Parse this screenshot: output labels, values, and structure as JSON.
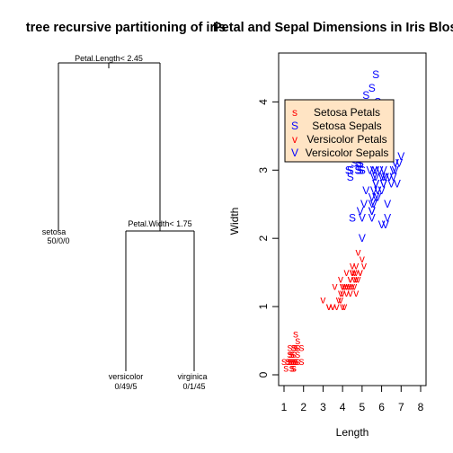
{
  "chart_data": [
    {
      "type": "diagram",
      "title": "tree recursive partitioning of iris",
      "root_split": "Petal.Length< 2.45",
      "inner_split": "Petal.Width< 1.75",
      "leaves": [
        {
          "label": "setosa",
          "counts": "50/0/0"
        },
        {
          "label": "versicolor",
          "counts": "0/49/5"
        },
        {
          "label": "virginica",
          "counts": "0/1/45"
        }
      ]
    },
    {
      "type": "scatter",
      "title": "Petal and Sepal Dimensions in Iris Blossoms",
      "xlabel": "Length",
      "ylabel": "Width",
      "xlim": [
        1,
        8
      ],
      "ylim": [
        0,
        4.5
      ],
      "x_ticks": [
        1,
        2,
        3,
        4,
        5,
        6,
        7,
        8
      ],
      "y_ticks": [
        0,
        1,
        2,
        3,
        4
      ],
      "legend_position": "top-left",
      "legend_fill": "#FFE4C4",
      "series": [
        {
          "name": "Setosa Petals",
          "symbol": "s",
          "color": "#FF0000",
          "x": [
            1.4,
            1.4,
            1.3,
            1.5,
            1.4,
            1.7,
            1.4,
            1.5,
            1.4,
            1.5,
            1.5,
            1.6,
            1.4,
            1.1,
            1.2,
            1.5,
            1.3,
            1.4,
            1.7,
            1.5,
            1.7,
            1.5,
            1.0,
            1.7,
            1.9,
            1.6,
            1.6,
            1.5,
            1.4,
            1.6,
            1.6,
            1.5,
            1.5,
            1.4,
            1.5,
            1.2,
            1.3,
            1.4,
            1.3,
            1.5,
            1.3,
            1.3,
            1.3,
            1.6,
            1.9,
            1.4,
            1.6,
            1.4,
            1.5,
            1.4
          ],
          "y": [
            0.2,
            0.2,
            0.2,
            0.2,
            0.2,
            0.4,
            0.3,
            0.2,
            0.2,
            0.1,
            0.2,
            0.2,
            0.1,
            0.1,
            0.2,
            0.4,
            0.4,
            0.3,
            0.3,
            0.3,
            0.2,
            0.4,
            0.2,
            0.5,
            0.2,
            0.2,
            0.4,
            0.2,
            0.2,
            0.2,
            0.2,
            0.4,
            0.1,
            0.2,
            0.2,
            0.2,
            0.2,
            0.1,
            0.2,
            0.2,
            0.3,
            0.3,
            0.2,
            0.6,
            0.4,
            0.3,
            0.2,
            0.2,
            0.2,
            0.2
          ]
        },
        {
          "name": "Setosa Sepals",
          "symbol": "S",
          "color": "#0000FF",
          "x": [
            5.1,
            4.9,
            4.7,
            4.6,
            5.0,
            5.4,
            4.6,
            5.0,
            4.4,
            4.9,
            5.4,
            4.8,
            4.8,
            4.3,
            5.8,
            5.7,
            5.4,
            5.1,
            5.7,
            5.1,
            5.4,
            5.1,
            4.6,
            5.1,
            4.8,
            5.0,
            5.0,
            5.2,
            5.2,
            4.7,
            4.8,
            5.4,
            5.2,
            5.5,
            4.9,
            5.0,
            5.5,
            4.9,
            4.4,
            5.1,
            5.0,
            4.5,
            4.4,
            5.0,
            5.1,
            4.8,
            5.1,
            4.6,
            5.3,
            5.0
          ],
          "y": [
            3.5,
            3.0,
            3.2,
            3.1,
            3.6,
            3.9,
            3.4,
            3.4,
            2.9,
            3.1,
            3.7,
            3.4,
            3.0,
            3.0,
            4.0,
            4.4,
            3.9,
            3.5,
            3.8,
            3.8,
            3.4,
            3.7,
            3.6,
            3.3,
            3.4,
            3.0,
            3.4,
            3.5,
            3.4,
            3.2,
            3.1,
            3.4,
            4.1,
            4.2,
            3.1,
            3.2,
            3.5,
            3.6,
            3.0,
            3.4,
            3.5,
            2.3,
            3.2,
            3.5,
            3.8,
            3.0,
            3.8,
            3.2,
            3.7,
            3.3
          ]
        },
        {
          "name": "Versicolor Petals",
          "symbol": "v",
          "color": "#FF0000",
          "x": [
            4.7,
            4.5,
            4.9,
            4.0,
            4.6,
            4.5,
            4.7,
            3.3,
            4.6,
            3.9,
            3.5,
            4.2,
            4.0,
            4.7,
            3.6,
            4.4,
            4.5,
            4.1,
            4.5,
            3.9,
            4.8,
            4.0,
            4.9,
            4.7,
            4.3,
            4.4,
            4.8,
            5.0,
            4.5,
            3.5,
            3.8,
            3.7,
            3.9,
            5.1,
            4.5,
            4.5,
            4.7,
            4.4,
            4.1,
            4.0,
            4.4,
            4.6,
            4.0,
            3.3,
            4.2,
            4.2,
            4.2,
            4.3,
            3.0,
            4.1
          ],
          "y": [
            1.4,
            1.5,
            1.5,
            1.3,
            1.5,
            1.3,
            1.6,
            1.0,
            1.3,
            1.4,
            1.0,
            1.5,
            1.0,
            1.4,
            1.3,
            1.4,
            1.5,
            1.0,
            1.5,
            1.1,
            1.8,
            1.3,
            1.5,
            1.2,
            1.3,
            1.4,
            1.4,
            1.7,
            1.5,
            1.0,
            1.1,
            1.0,
            1.2,
            1.6,
            1.5,
            1.6,
            1.5,
            1.3,
            1.3,
            1.3,
            1.2,
            1.4,
            1.2,
            1.0,
            1.3,
            1.2,
            1.3,
            1.3,
            1.1,
            1.3
          ]
        },
        {
          "name": "Versicolor Sepals",
          "symbol": "V",
          "color": "#0000FF",
          "x": [
            7.0,
            6.4,
            6.9,
            5.5,
            6.5,
            5.7,
            6.3,
            4.9,
            6.6,
            5.2,
            5.0,
            5.9,
            6.0,
            6.1,
            5.6,
            6.7,
            5.6,
            5.8,
            6.2,
            5.6,
            5.9,
            6.1,
            6.3,
            6.1,
            6.4,
            6.6,
            6.8,
            6.7,
            6.0,
            5.7,
            5.5,
            5.5,
            5.8,
            6.0,
            5.4,
            6.0,
            6.7,
            6.3,
            5.6,
            5.5,
            5.5,
            6.1,
            5.8,
            5.0,
            5.6,
            5.7,
            5.7,
            6.2,
            5.1,
            5.7
          ],
          "y": [
            3.2,
            3.2,
            3.1,
            2.3,
            2.8,
            2.8,
            3.3,
            2.4,
            2.9,
            2.7,
            2.0,
            3.0,
            2.2,
            2.9,
            2.9,
            3.1,
            3.0,
            2.7,
            2.2,
            2.5,
            3.2,
            2.8,
            2.5,
            2.8,
            2.9,
            3.0,
            2.8,
            3.0,
            2.9,
            2.6,
            2.4,
            2.4,
            2.7,
            2.7,
            3.0,
            3.4,
            3.1,
            2.3,
            3.0,
            2.5,
            2.6,
            3.0,
            2.6,
            2.3,
            2.7,
            3.0,
            2.9,
            2.9,
            2.5,
            2.8
          ]
        }
      ]
    }
  ]
}
